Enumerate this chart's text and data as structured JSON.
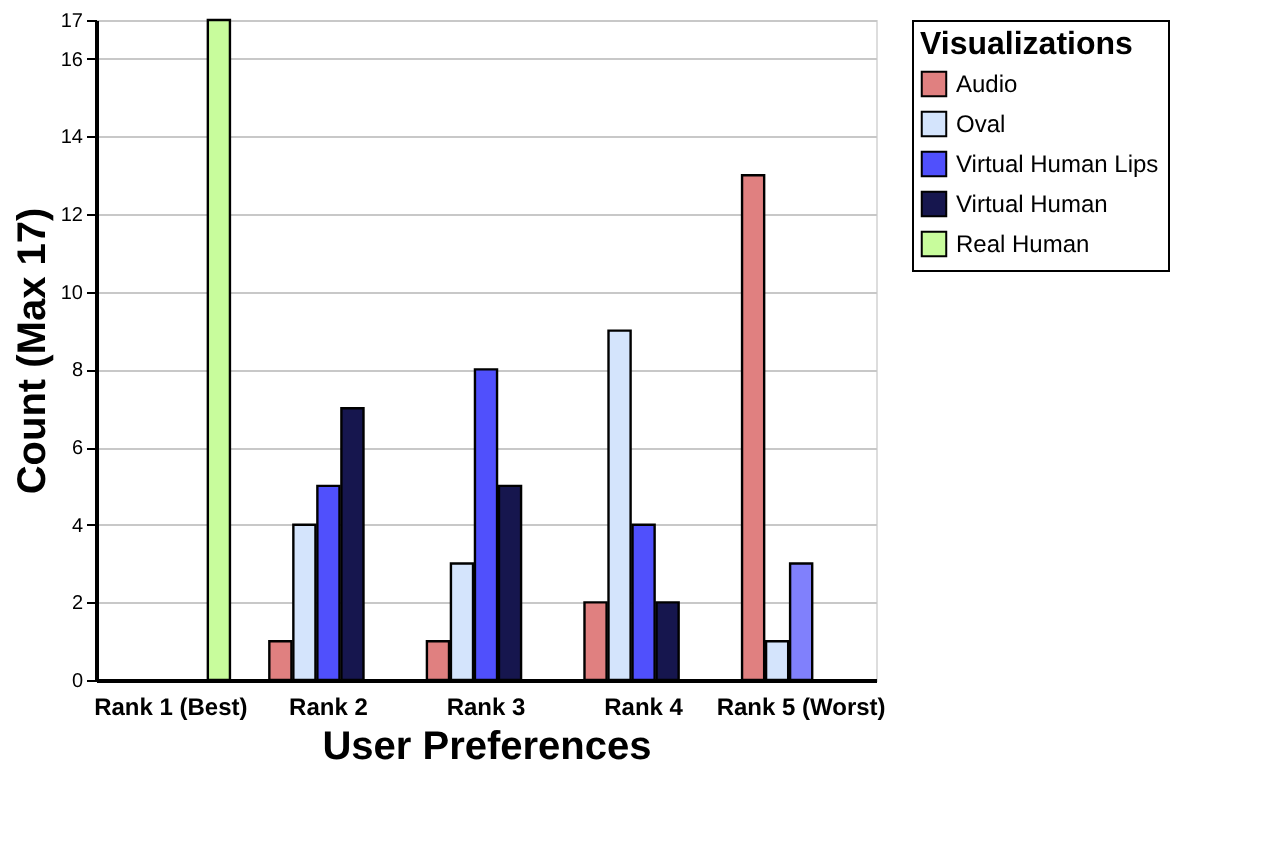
{
  "chart_data": {
    "type": "bar",
    "xlabel": "User Preferences",
    "ylabel": "Count (Max 17)",
    "legend_title": "Visualizations",
    "categories": [
      "Rank 1 (Best)",
      "Rank 2",
      "Rank 3",
      "Rank 4",
      "Rank 5 (Worst)"
    ],
    "series": [
      {
        "name": "Audio",
        "color": "#e08080",
        "values": [
          null,
          1,
          1,
          2,
          13
        ]
      },
      {
        "name": "Oval",
        "color": "#d4e4fc",
        "values": [
          null,
          4,
          3,
          9,
          1
        ]
      },
      {
        "name": "Virtual Human Lips",
        "color": "#5050fc",
        "values": [
          null,
          5,
          8,
          4,
          3
        ],
        "colors": [
          "#5050fc",
          "#5050fc",
          "#5050fc",
          "#5050fc",
          "#8080fc"
        ]
      },
      {
        "name": "Virtual Human",
        "color": "#16164e",
        "values": [
          null,
          7,
          5,
          2,
          null
        ]
      },
      {
        "name": "Real Human",
        "color": "#c8fc9c",
        "values": [
          17,
          null,
          null,
          null,
          null
        ]
      }
    ],
    "ylim": [
      0,
      17
    ],
    "yticks": [
      0,
      2,
      4,
      6,
      8,
      10,
      12,
      14,
      16,
      17
    ],
    "grid": "y",
    "legend": "top right"
  }
}
